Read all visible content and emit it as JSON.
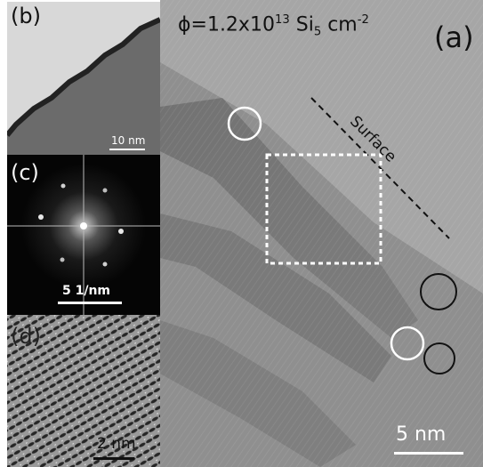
{
  "panels": {
    "a": {
      "label": "(a)",
      "title_prefix": "ϕ=1.2x10",
      "title_exp": "13",
      "title_mid": " Si",
      "title_sub": "5",
      "title_mid2": " cm",
      "title_exp2": "-2",
      "surface_label": "Surface",
      "scalebar": "5 nm",
      "colors": {
        "background": "#8f8f8f",
        "white_circle": "#ffffff",
        "black_circle": "#111111",
        "box": "#ffffff"
      }
    },
    "b": {
      "label": "(b)",
      "scalebar": "10 nm"
    },
    "c": {
      "label": "(c)",
      "scalebar": "5 1/nm"
    },
    "d": {
      "label": "(d)",
      "scalebar": "2 nm"
    }
  }
}
